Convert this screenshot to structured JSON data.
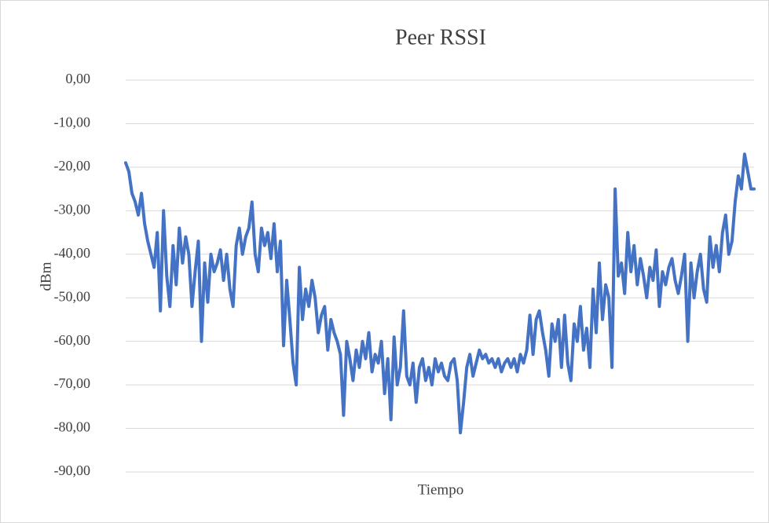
{
  "chart_data": {
    "type": "line",
    "title": "Peer RSSI",
    "x_label": "Tiempo",
    "y_label": "dBm",
    "color": "#4472c4",
    "grid": true,
    "ylim": [
      -90,
      0
    ],
    "yticks": [
      {
        "value": 0,
        "label": "0,00"
      },
      {
        "value": -10,
        "label": "-10,00"
      },
      {
        "value": -20,
        "label": "-20,00"
      },
      {
        "value": -30,
        "label": "-30,00"
      },
      {
        "value": -40,
        "label": "-40,00"
      },
      {
        "value": -50,
        "label": "-50,00"
      },
      {
        "value": -60,
        "label": "-60,00"
      },
      {
        "value": -70,
        "label": "-70,00"
      },
      {
        "value": -80,
        "label": "-80,00"
      },
      {
        "value": -90,
        "label": "-90,00"
      }
    ],
    "values": [
      -19,
      -21,
      -26,
      -28,
      -31,
      -26,
      -33,
      -37,
      -40,
      -43,
      -35,
      -53,
      -30,
      -45,
      -52,
      -38,
      -47,
      -34,
      -42,
      -36,
      -40,
      -52,
      -44,
      -37,
      -60,
      -42,
      -51,
      -40,
      -44,
      -42,
      -39,
      -46,
      -40,
      -48,
      -52,
      -38,
      -34,
      -40,
      -36,
      -34,
      -28,
      -40,
      -44,
      -34,
      -38,
      -35,
      -41,
      -33,
      -44,
      -37,
      -61,
      -46,
      -55,
      -65,
      -70,
      -43,
      -55,
      -48,
      -52,
      -46,
      -50,
      -58,
      -54,
      -52,
      -62,
      -55,
      -58,
      -60,
      -63,
      -77,
      -60,
      -64,
      -69,
      -62,
      -66,
      -60,
      -64,
      -58,
      -67,
      -63,
      -65,
      -60,
      -72,
      -64,
      -78,
      -59,
      -70,
      -66,
      -53,
      -68,
      -70,
      -65,
      -74,
      -66,
      -64,
      -69,
      -66,
      -70,
      -64,
      -67,
      -65,
      -68,
      -69,
      -65,
      -64,
      -69,
      -81,
      -74,
      -66,
      -63,
      -68,
      -65,
      -62,
      -64,
      -63,
      -65,
      -64,
      -66,
      -64,
      -67,
      -65,
      -64,
      -66,
      -64,
      -67,
      -63,
      -65,
      -62,
      -54,
      -63,
      -55,
      -53,
      -58,
      -62,
      -68,
      -56,
      -60,
      -55,
      -66,
      -54,
      -65,
      -69,
      -56,
      -60,
      -52,
      -62,
      -57,
      -66,
      -48,
      -58,
      -42,
      -55,
      -47,
      -50,
      -66,
      -25,
      -45,
      -42,
      -49,
      -35,
      -44,
      -38,
      -47,
      -41,
      -45,
      -50,
      -43,
      -46,
      -39,
      -52,
      -44,
      -47,
      -43,
      -41,
      -46,
      -49,
      -45,
      -40,
      -60,
      -42,
      -50,
      -44,
      -40,
      -48,
      -51,
      -36,
      -43,
      -38,
      -44,
      -35,
      -31,
      -40,
      -37,
      -28,
      -22,
      -25,
      -17,
      -21,
      -25,
      -25
    ]
  }
}
